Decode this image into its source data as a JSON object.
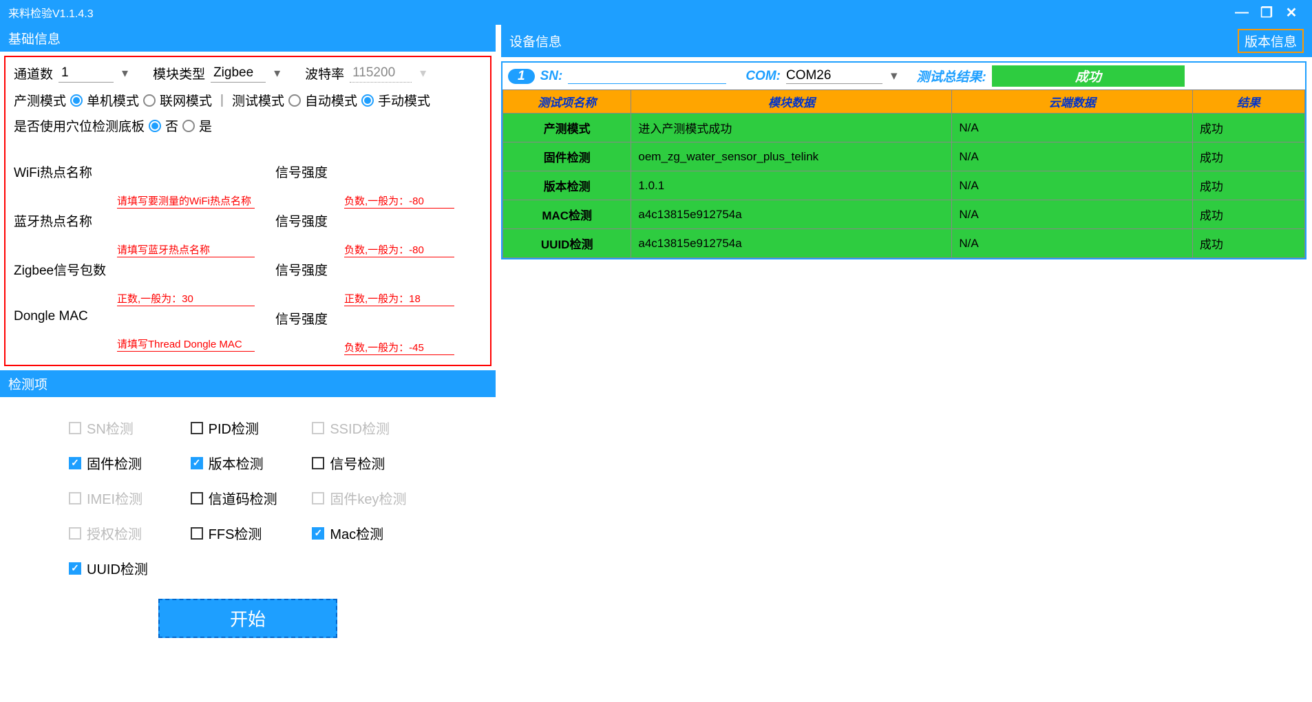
{
  "titlebar": {
    "title": "来料检验V1.1.4.3"
  },
  "sections": {
    "basic": "基础信息",
    "device": "设备信息",
    "version_btn": "版本信息",
    "check": "检测项"
  },
  "basic": {
    "channel_label": "通道数",
    "channel_value": "1",
    "module_label": "模块类型",
    "module_value": "Zigbee",
    "baud_label": "波特率",
    "baud_value": "115200",
    "prod_mode_label": "产测模式",
    "single_mode": "单机模式",
    "network_mode": "联网模式",
    "test_mode_label": "测试模式",
    "auto_mode": "自动模式",
    "manual_mode": "手动模式",
    "socket_label": "是否使用穴位检测底板",
    "no": "否",
    "yes": "是",
    "fields": [
      {
        "label": "WiFi热点名称",
        "ph": "请填写要测量的WiFi热点名称",
        "r_label": "信号强度",
        "r_ph": "负数,一般为：-80"
      },
      {
        "label": "蓝牙热点名称",
        "ph": "请填写蓝牙热点名称",
        "r_label": "信号强度",
        "r_ph": "负数,一般为：-80"
      },
      {
        "label": "Zigbee信号包数",
        "ph": "正数,一般为：30",
        "r_label": "信号强度",
        "r_ph": "正数,一般为：18"
      },
      {
        "label": "Dongle MAC",
        "ph": "请填写Thread Dongle MAC",
        "r_label": "信号强度",
        "r_ph": "负数,一般为：-45"
      }
    ]
  },
  "checks": [
    {
      "label": "SN检测",
      "checked": false,
      "disabled": true
    },
    {
      "label": "PID检测",
      "checked": false,
      "disabled": false
    },
    {
      "label": "SSID检测",
      "checked": false,
      "disabled": true
    },
    {
      "label": "固件检测",
      "checked": true,
      "disabled": false
    },
    {
      "label": "版本检测",
      "checked": true,
      "disabled": false
    },
    {
      "label": "信号检测",
      "checked": false,
      "disabled": false
    },
    {
      "label": "IMEI检测",
      "checked": false,
      "disabled": true
    },
    {
      "label": "信道码检测",
      "checked": false,
      "disabled": false
    },
    {
      "label": "固件key检测",
      "checked": false,
      "disabled": true
    },
    {
      "label": "授权检测",
      "checked": false,
      "disabled": true
    },
    {
      "label": "FFS检测",
      "checked": false,
      "disabled": false
    },
    {
      "label": "Mac检测",
      "checked": true,
      "disabled": false
    },
    {
      "label": "UUID检测",
      "checked": true,
      "disabled": false
    }
  ],
  "start_btn": "开始",
  "device": {
    "badge": "1",
    "sn_label": "SN:",
    "com_label": "COM:",
    "com_value": "COM26",
    "result_label": "测试总结果:",
    "result_value": "成功",
    "headers": [
      "测试项名称",
      "模块数据",
      "云端数据",
      "结果"
    ],
    "rows": [
      {
        "name": "产测模式",
        "mod": "进入产测模式成功",
        "cloud": "N/A",
        "res": "成功"
      },
      {
        "name": "固件检测",
        "mod": "oem_zg_water_sensor_plus_telink",
        "cloud": "N/A",
        "res": "成功"
      },
      {
        "name": "版本检测",
        "mod": "1.0.1",
        "cloud": "N/A",
        "res": "成功"
      },
      {
        "name": "MAC检测",
        "mod": "a4c13815e912754a",
        "cloud": "N/A",
        "res": "成功"
      },
      {
        "name": "UUID检测",
        "mod": "a4c13815e912754a",
        "cloud": "N/A",
        "res": "成功"
      }
    ]
  }
}
